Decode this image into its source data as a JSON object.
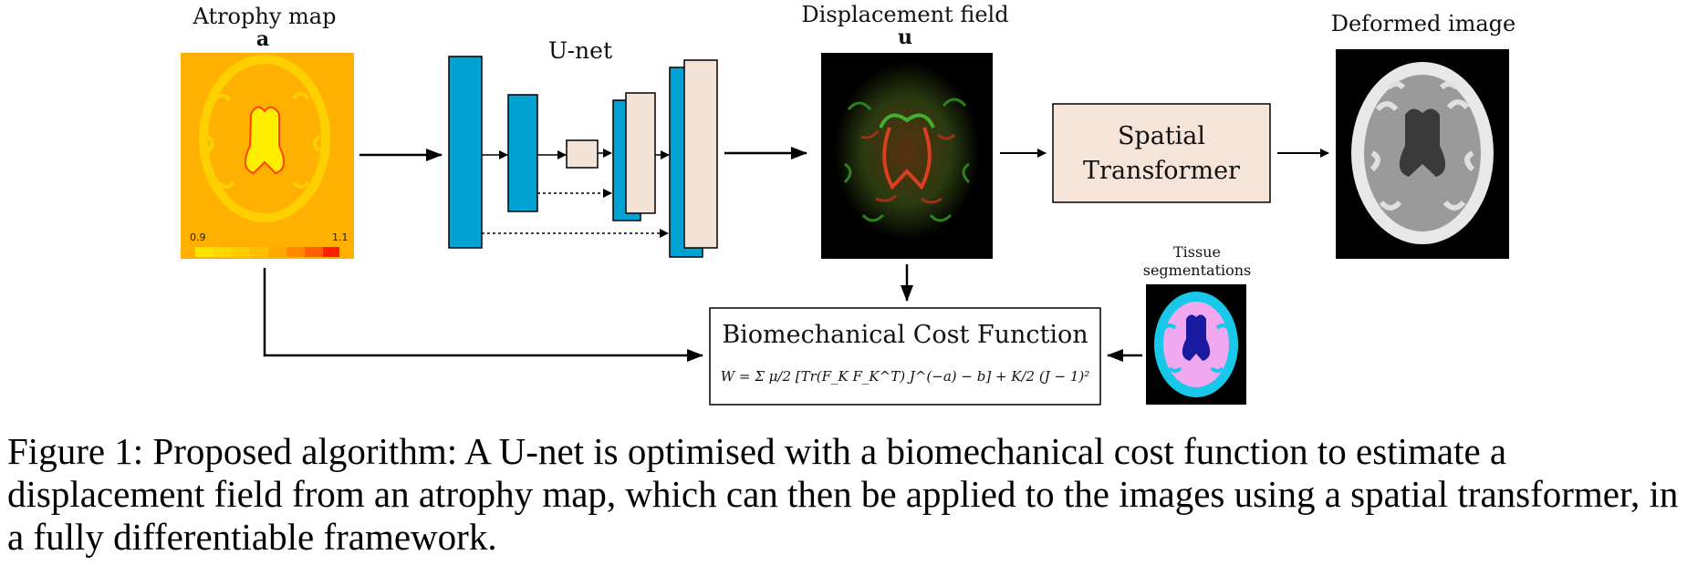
{
  "labels": {
    "atrophy_title": "Atrophy map",
    "atrophy_symbol": "a",
    "unet": "U-net",
    "displacement_title": "Displacement field",
    "displacement_symbol": "u",
    "deformed_title": "Deformed image",
    "tissue_line1": "Tissue",
    "tissue_line2": "segmentations",
    "spatial_line1": "Spatial",
    "spatial_line2": "Transformer",
    "cost_title": "Biomechanical Cost Function",
    "cost_formula": "W = Σ μ/2 [Tr(F_K F_K^T) J^(−a) − b] + K/2 (J − 1)²",
    "colorbar_min": "0.9",
    "colorbar_max": "1.1"
  },
  "colors": {
    "unet_blue": "#00a3d2",
    "unet_beige": "#f2e3d6",
    "transformer_fill": "#f6e4d9",
    "atrophy_orange": "#ffb000",
    "atrophy_yellow": "#ffe600",
    "atrophy_red": "#ff3a00"
  },
  "caption": "Figure 1: Proposed algorithm: A U-net is optimised with a biomechanical cost function to estimate a displacement field from an atrophy map, which can then be applied to the images using a spatial transformer, in a fully differentiable framework."
}
